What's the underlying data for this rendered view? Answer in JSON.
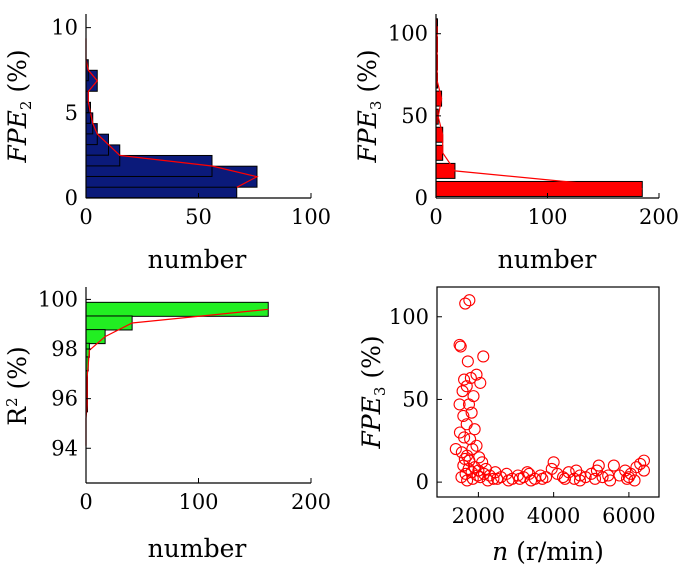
{
  "chart_data": [
    {
      "id": "fpe2",
      "type": "bar",
      "orientation": "horizontal",
      "xlabel": "number",
      "ylabel": {
        "var": "FPE",
        "sub": "2",
        "unit": " (%)"
      },
      "xlim": [
        0,
        100
      ],
      "ylim": [
        0,
        10.8
      ],
      "xticks": [
        "0",
        "50",
        "100"
      ],
      "yticks": [
        "0",
        "5",
        "10"
      ],
      "bar_color": "#0b1a7a",
      "line_color": "#ff0000",
      "bins": [
        0.63,
        1.25,
        1.88,
        2.5,
        3.13,
        3.75,
        4.38,
        5.0,
        5.63,
        6.25,
        6.88,
        7.5,
        8.13
      ],
      "values": [
        67,
        76,
        56,
        15,
        10,
        5,
        3,
        2,
        1,
        1,
        5,
        1,
        0
      ],
      "line_x": [
        67,
        76,
        56,
        15,
        10,
        5,
        3,
        2,
        1,
        1,
        5,
        1,
        0,
        0,
        0
      ]
    },
    {
      "id": "fpe3",
      "type": "bar",
      "orientation": "horizontal",
      "xlabel": "number",
      "ylabel": {
        "var": "FPE",
        "sub": "3",
        "unit": " (%)"
      },
      "xlim": [
        0,
        200
      ],
      "ylim": [
        0,
        112
      ],
      "xticks": [
        "0",
        "100",
        "200"
      ],
      "yticks": [
        "0",
        "50",
        "100"
      ],
      "bar_color": "#ff0000",
      "line_color": "#ff0000",
      "bins": [
        5.5,
        16.5,
        27.5,
        38.5,
        49.5,
        60.5,
        71.5,
        82.5,
        93.5,
        104.5
      ],
      "values": [
        185,
        17,
        6,
        6,
        2,
        5,
        1,
        1,
        1,
        1
      ],
      "line_x": [
        185,
        17,
        6,
        6,
        2,
        5,
        1,
        1,
        1,
        1
      ]
    },
    {
      "id": "r2",
      "type": "bar",
      "orientation": "horizontal",
      "xlabel": "number",
      "ylabel": {
        "var": "R",
        "sup": "2",
        "unit": " (%)"
      },
      "xlim": [
        0,
        200
      ],
      "ylim": [
        92.6,
        100.5
      ],
      "xticks": [
        "0",
        "100",
        "200"
      ],
      "yticks": [
        "94",
        "96",
        "98",
        "100"
      ],
      "bar_color": "#22ee22",
      "line_color": "#ff0000",
      "bins": [
        99.6,
        99.05,
        98.5,
        97.95,
        97.4,
        96.85,
        96.3,
        95.75,
        95.2,
        94.65
      ],
      "values": [
        162,
        41,
        17,
        3,
        2,
        1,
        1,
        1,
        0,
        0
      ],
      "line_x": [
        162,
        41,
        17,
        3,
        2,
        1,
        1,
        1,
        0,
        0,
        0
      ]
    },
    {
      "id": "scatter",
      "type": "scatter",
      "xlabel": {
        "var": "n",
        "unit": " (r/min)"
      },
      "ylabel": {
        "var": "FPE",
        "sub": "3",
        "unit": " (%)"
      },
      "xlim": [
        900,
        6800
      ],
      "ylim": [
        -9,
        118
      ],
      "xticks": [
        "2000",
        "4000",
        "6000"
      ],
      "yticks": [
        "0",
        "50",
        "100"
      ],
      "marker_color": "#ff0000",
      "points": [
        [
          1650,
          108
        ],
        [
          1760,
          110
        ],
        [
          1500,
          83
        ],
        [
          1530,
          82
        ],
        [
          1720,
          73
        ],
        [
          2130,
          76
        ],
        [
          1620,
          62
        ],
        [
          1800,
          63
        ],
        [
          1950,
          65
        ],
        [
          2050,
          60
        ],
        [
          1580,
          55
        ],
        [
          1690,
          58
        ],
        [
          1870,
          52
        ],
        [
          1500,
          47
        ],
        [
          1750,
          47
        ],
        [
          1600,
          40
        ],
        [
          1820,
          42
        ],
        [
          1690,
          35
        ],
        [
          1900,
          32
        ],
        [
          1510,
          30
        ],
        [
          1620,
          27
        ],
        [
          1780,
          26
        ],
        [
          1400,
          20
        ],
        [
          1560,
          18
        ],
        [
          1700,
          16
        ],
        [
          1840,
          20
        ],
        [
          1950,
          22
        ],
        [
          2020,
          15
        ],
        [
          2100,
          12
        ],
        [
          1600,
          10
        ],
        [
          1740,
          8
        ],
        [
          1660,
          5
        ],
        [
          1820,
          6
        ],
        [
          1900,
          9
        ],
        [
          2000,
          7
        ],
        [
          2150,
          5
        ],
        [
          2300,
          4
        ],
        [
          2450,
          6
        ],
        [
          2600,
          3
        ],
        [
          2750,
          5
        ],
        [
          2900,
          2
        ],
        [
          3050,
          4
        ],
        [
          3200,
          3
        ],
        [
          3350,
          5
        ],
        [
          3500,
          2
        ],
        [
          3650,
          4
        ],
        [
          3800,
          3
        ],
        [
          3950,
          8
        ],
        [
          4100,
          5
        ],
        [
          4250,
          3
        ],
        [
          4400,
          6
        ],
        [
          4550,
          2
        ],
        [
          4700,
          4
        ],
        [
          4850,
          3
        ],
        [
          5000,
          5
        ],
        [
          5150,
          7
        ],
        [
          5300,
          3
        ],
        [
          5450,
          4
        ],
        [
          5600,
          10
        ],
        [
          5750,
          4
        ],
        [
          5900,
          7
        ],
        [
          6050,
          5
        ],
        [
          6200,
          9
        ],
        [
          6300,
          11
        ],
        [
          6400,
          13
        ],
        [
          1550,
          3
        ],
        [
          1700,
          1
        ],
        [
          1850,
          2
        ],
        [
          2050,
          3
        ],
        [
          2250,
          1
        ],
        [
          2500,
          2
        ],
        [
          2800,
          1
        ],
        [
          3100,
          2
        ],
        [
          3400,
          1
        ],
        [
          3700,
          2
        ],
        [
          4000,
          12
        ],
        [
          4300,
          2
        ],
        [
          4700,
          1
        ],
        [
          5100,
          2
        ],
        [
          5500,
          1
        ],
        [
          5950,
          2
        ],
        [
          6150,
          1
        ],
        [
          1640,
          14
        ],
        [
          1760,
          13
        ],
        [
          1980,
          4
        ],
        [
          2200,
          8
        ],
        [
          2400,
          2
        ],
        [
          3300,
          6
        ],
        [
          4600,
          7
        ],
        [
          5200,
          10
        ],
        [
          6000,
          3
        ],
        [
          6400,
          7
        ]
      ]
    }
  ]
}
